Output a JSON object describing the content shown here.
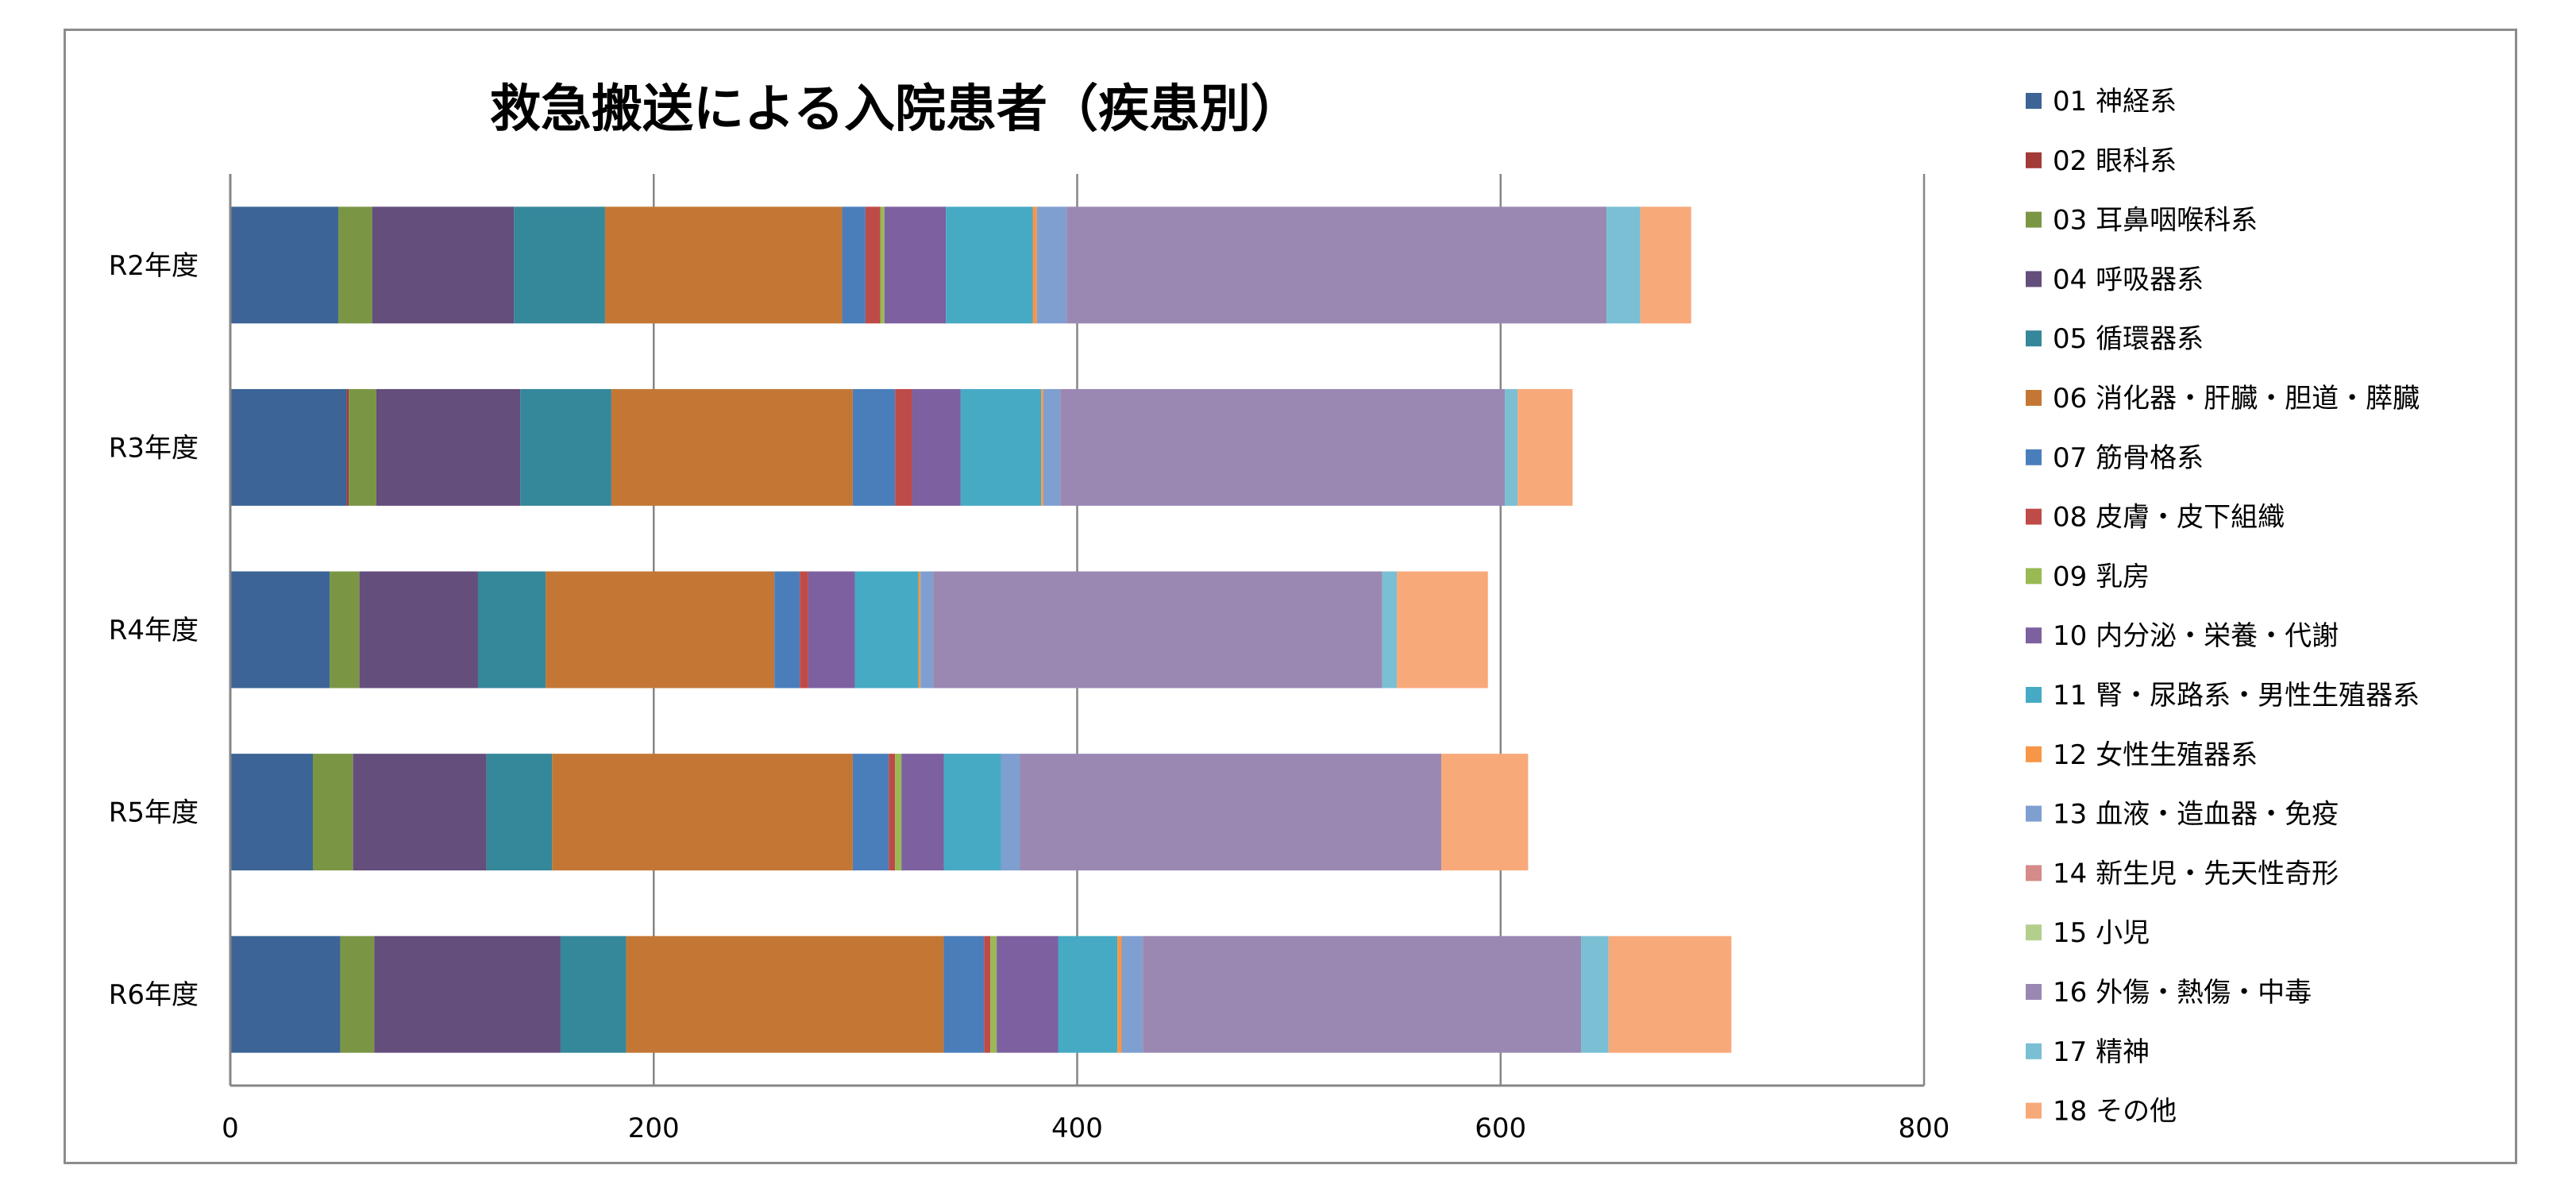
{
  "chart_data": {
    "type": "bar",
    "orientation": "horizontal",
    "stacked": true,
    "title": "救急搬送による入院患者（疾患別）",
    "xlabel": "",
    "ylabel": "",
    "xlim": [
      0,
      800
    ],
    "xticks": [
      "0",
      "200",
      "400",
      "600",
      "800"
    ],
    "grid": true,
    "legend_position": "right",
    "categories": [
      "R2年度",
      "R3年度",
      "R4年度",
      "R5年度",
      "R6年度"
    ],
    "series": [
      {
        "name": "01 神経系",
        "color": "#3C6496",
        "values": [
          51,
          55,
          47,
          39,
          52
        ]
      },
      {
        "name": "02 眼科系",
        "color": "#A33A37",
        "values": [
          0,
          1,
          0,
          0,
          0
        ]
      },
      {
        "name": "03 耳鼻咽喉科系",
        "color": "#7A9645",
        "values": [
          16,
          13,
          14,
          19,
          16
        ]
      },
      {
        "name": "04 呼吸器系",
        "color": "#644E7C",
        "values": [
          67,
          68,
          56,
          63,
          88
        ]
      },
      {
        "name": "05 循環器系",
        "color": "#35879A",
        "values": [
          43,
          43,
          32,
          31,
          31
        ]
      },
      {
        "name": "06 消化器・肝臓・胆道・膵臓",
        "color": "#C47734",
        "values": [
          112,
          114,
          108,
          142,
          150
        ]
      },
      {
        "name": "07 筋骨格系",
        "color": "#4A7EBB",
        "values": [
          11,
          20,
          12,
          17,
          19
        ]
      },
      {
        "name": "08 皮膚・皮下組織",
        "color": "#BE4B48",
        "values": [
          7,
          8,
          4,
          3,
          3
        ]
      },
      {
        "name": "09 乳房",
        "color": "#98B954",
        "values": [
          2,
          0,
          0,
          3,
          3
        ]
      },
      {
        "name": "10 内分泌・栄養・代謝",
        "color": "#7D60A0",
        "values": [
          29,
          23,
          22,
          20,
          29
        ]
      },
      {
        "name": "11 腎・尿路系・男性生殖器系",
        "color": "#46AAC5",
        "values": [
          41,
          38,
          30,
          27,
          28
        ]
      },
      {
        "name": "12 女性生殖器系",
        "color": "#F79646",
        "values": [
          2,
          1,
          1,
          0,
          2
        ]
      },
      {
        "name": "13 血液・造血器・免疫",
        "color": "#7F9FD1",
        "values": [
          14,
          8,
          6,
          9,
          10
        ]
      },
      {
        "name": "14 新生児・先天性奇形",
        "color": "#D48B8A",
        "values": [
          0,
          0,
          0,
          0,
          0
        ]
      },
      {
        "name": "15 小児",
        "color": "#B3CF8D",
        "values": [
          0,
          0,
          0,
          0,
          0
        ]
      },
      {
        "name": "16 外傷・熱傷・中毒",
        "color": "#9A88B2",
        "values": [
          255,
          210,
          212,
          199,
          207
        ]
      },
      {
        "name": "17 精神",
        "color": "#7ABFD4",
        "values": [
          16,
          6,
          7,
          0,
          13
        ]
      },
      {
        "name": "18 その他",
        "color": "#F8A97A",
        "values": [
          24,
          26,
          43,
          41,
          58
        ]
      }
    ]
  }
}
